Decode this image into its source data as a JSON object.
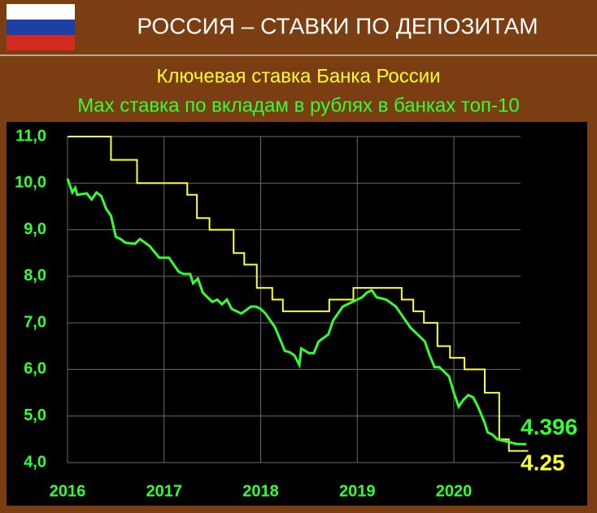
{
  "chart_data": {
    "type": "line",
    "title": "РОССИЯ – СТАВКИ ПО ДЕПОЗИТАМ",
    "xlim": [
      2016,
      2020.8
    ],
    "xticks": [
      2016,
      2017,
      2018,
      2019,
      2020
    ],
    "ylim": [
      4,
      11
    ],
    "yticks": [
      {
        "value": 4,
        "label": "4,0"
      },
      {
        "value": 5,
        "label": "5,0"
      },
      {
        "value": 6,
        "label": "6,0"
      },
      {
        "value": 7,
        "label": "7,0"
      },
      {
        "value": 8,
        "label": "8,0"
      },
      {
        "value": 9,
        "label": "9,0"
      },
      {
        "value": 10,
        "label": "10,0"
      },
      {
        "value": 11,
        "label": "11,0"
      }
    ],
    "grid": true,
    "series": [
      {
        "name": "Ключевая ставка Банка России",
        "color": "#ffff33",
        "step": true,
        "x": [
          2016.0,
          2016.45,
          2016.72,
          2017.24,
          2017.34,
          2017.47,
          2017.72,
          2017.83,
          2017.96,
          2018.12,
          2018.23,
          2018.71,
          2018.96,
          2019.46,
          2019.58,
          2019.69,
          2019.83,
          2019.96,
          2020.11,
          2020.32,
          2020.47,
          2020.57,
          2020.77
        ],
        "values": [
          11,
          10.5,
          10,
          9.75,
          9.25,
          9,
          8.5,
          8.25,
          7.75,
          7.5,
          7.25,
          7.5,
          7.75,
          7.5,
          7.25,
          7,
          6.5,
          6.25,
          6,
          5.5,
          4.5,
          4.25,
          4.25
        ]
      },
      {
        "name": "Max ставка по вкладам в рублях в банках топ-10",
        "color": "#33ff33",
        "step": false,
        "x": [
          2016.0,
          2016.05,
          2016.08,
          2016.1,
          2016.2,
          2016.25,
          2016.3,
          2016.35,
          2016.4,
          2016.45,
          2016.5,
          2016.55,
          2016.6,
          2016.7,
          2016.75,
          2016.85,
          2016.95,
          2017.05,
          2017.15,
          2017.2,
          2017.27,
          2017.3,
          2017.35,
          2017.4,
          2017.45,
          2017.5,
          2017.55,
          2017.6,
          2017.65,
          2017.7,
          2017.8,
          2017.9,
          2017.95,
          2018.0,
          2018.05,
          2018.1,
          2018.15,
          2018.2,
          2018.25,
          2018.3,
          2018.35,
          2018.4,
          2018.42,
          2018.5,
          2018.55,
          2018.6,
          2018.7,
          2018.75,
          2018.8,
          2018.85,
          2018.95,
          2019.0,
          2019.05,
          2019.1,
          2019.15,
          2019.2,
          2019.3,
          2019.4,
          2019.45,
          2019.55,
          2019.6,
          2019.7,
          2019.75,
          2019.8,
          2019.85,
          2019.9,
          2019.95,
          2020.0,
          2020.05,
          2020.1,
          2020.15,
          2020.2,
          2020.25,
          2020.28,
          2020.32,
          2020.35,
          2020.4,
          2020.45,
          2020.55,
          2020.65,
          2020.75
        ],
        "values": [
          10.1,
          9.8,
          9.9,
          9.75,
          9.78,
          9.65,
          9.8,
          9.72,
          9.45,
          9.3,
          8.85,
          8.8,
          8.72,
          8.7,
          8.8,
          8.65,
          8.4,
          8.4,
          8.1,
          8.05,
          8.05,
          7.85,
          7.95,
          7.65,
          7.55,
          7.45,
          7.5,
          7.4,
          7.5,
          7.3,
          7.2,
          7.35,
          7.35,
          7.3,
          7.2,
          7.05,
          6.9,
          6.65,
          6.4,
          6.37,
          6.3,
          6.1,
          6.45,
          6.35,
          6.35,
          6.6,
          6.75,
          7.05,
          7.2,
          7.35,
          7.45,
          7.5,
          7.55,
          7.65,
          7.7,
          7.55,
          7.5,
          7.35,
          7.2,
          6.9,
          6.8,
          6.6,
          6.3,
          6.05,
          6.05,
          5.95,
          5.85,
          5.5,
          5.2,
          5.35,
          5.45,
          5.4,
          5.2,
          5.05,
          4.85,
          4.65,
          4.6,
          4.5,
          4.45,
          4.4,
          4.396
        ]
      }
    ]
  }
}
